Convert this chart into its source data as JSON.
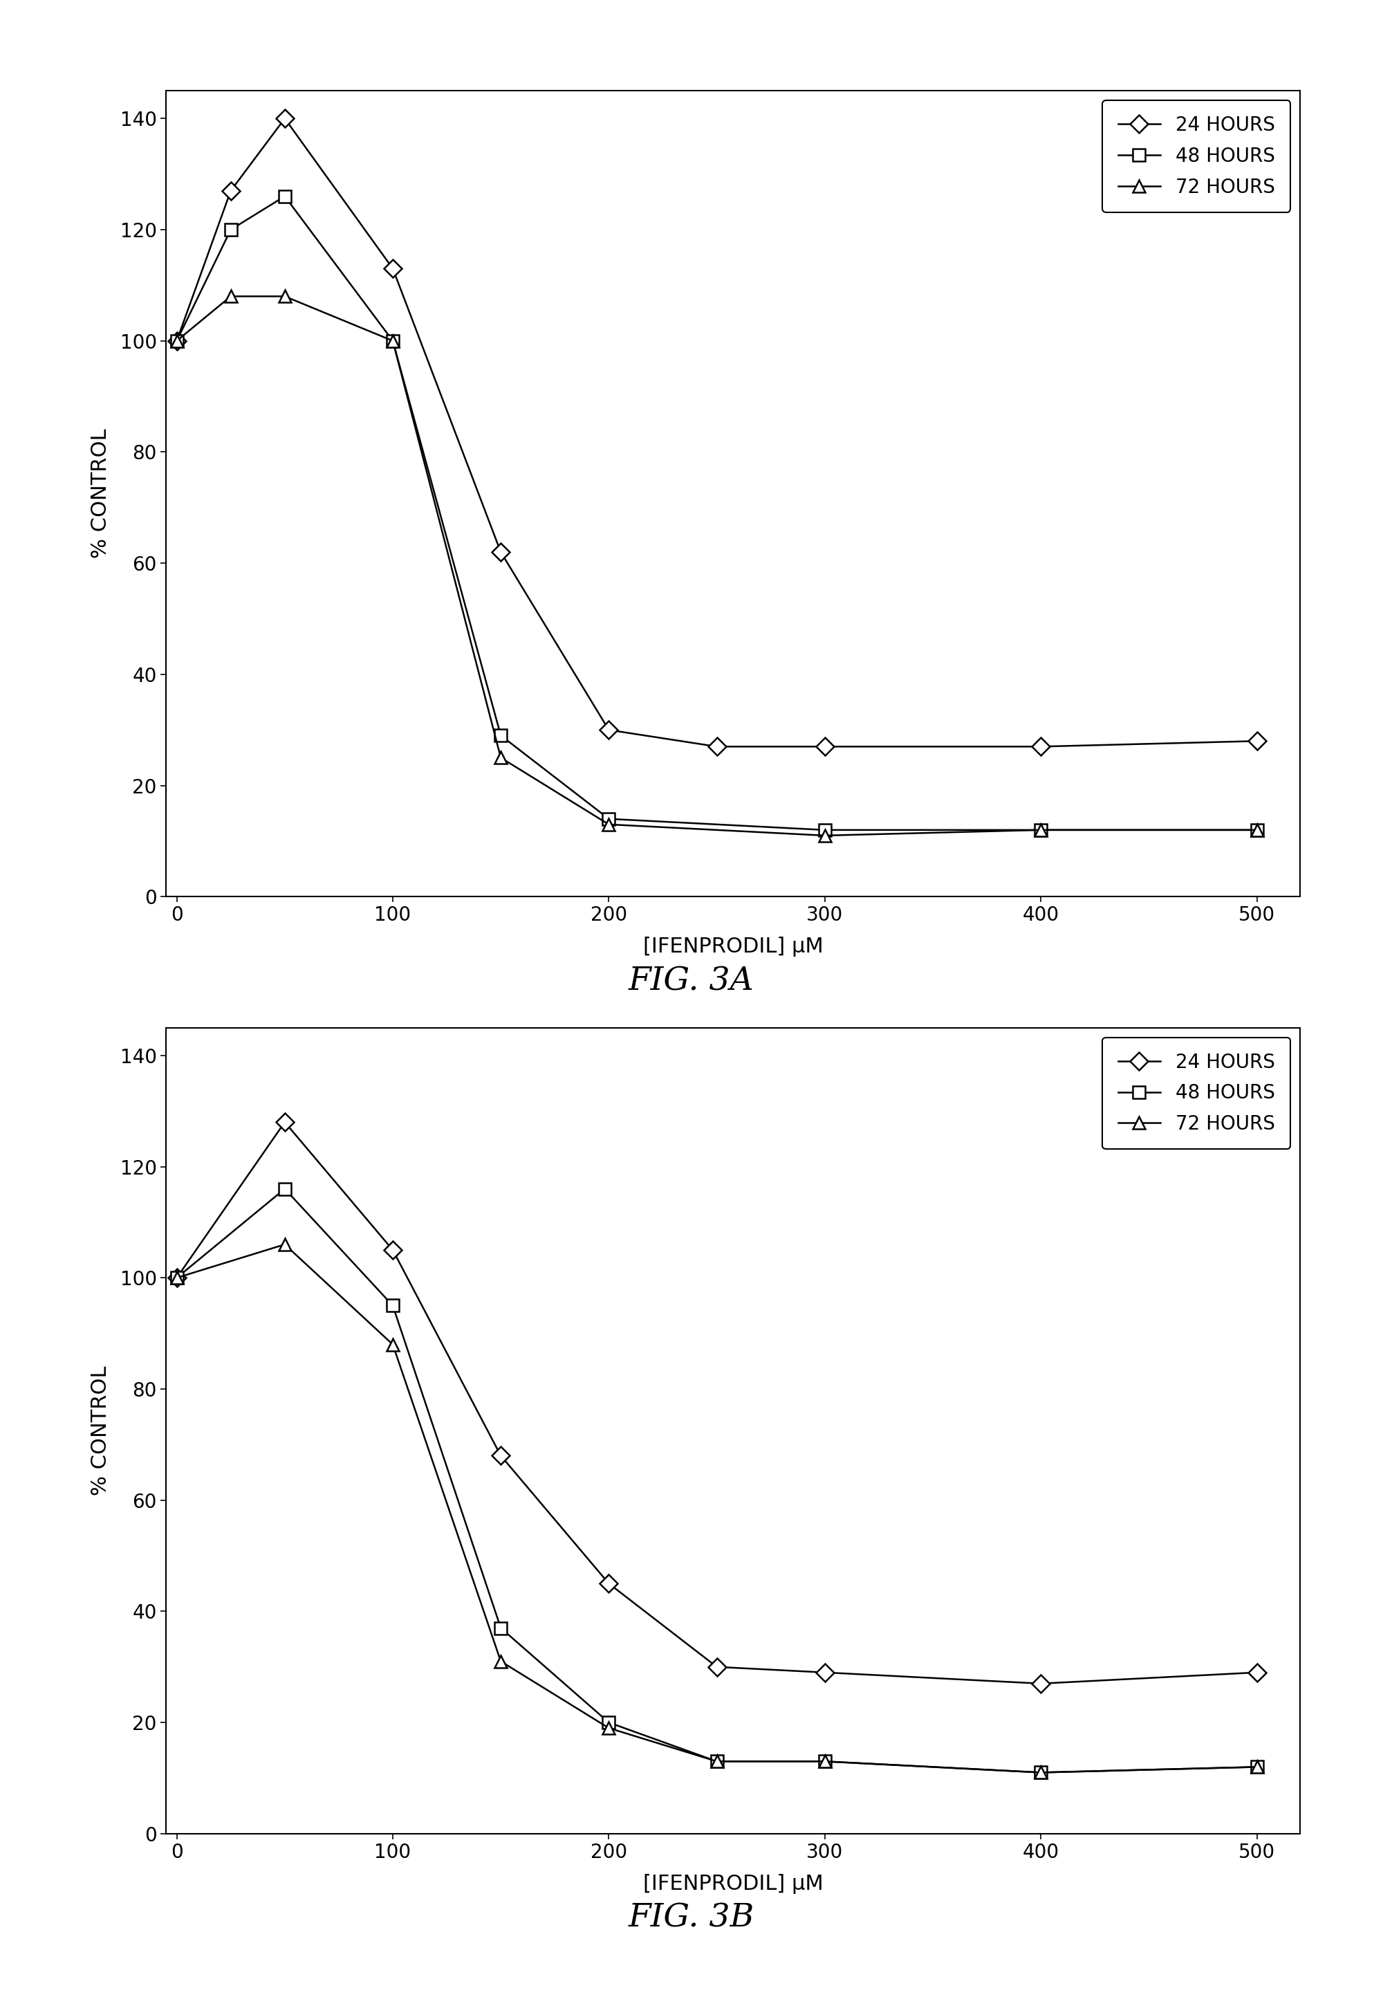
{
  "fig3a": {
    "x_24h": [
      0,
      25,
      50,
      100,
      150,
      200,
      250,
      300,
      400,
      500
    ],
    "y_24h": [
      100,
      127,
      140,
      113,
      62,
      30,
      27,
      27,
      27,
      28
    ],
    "x_48h": [
      0,
      25,
      50,
      100,
      150,
      200,
      300,
      400,
      500
    ],
    "y_48h": [
      100,
      120,
      126,
      100,
      29,
      14,
      12,
      12,
      12
    ],
    "x_72h": [
      0,
      25,
      50,
      100,
      150,
      200,
      300,
      400,
      500
    ],
    "y_72h": [
      100,
      108,
      108,
      100,
      25,
      13,
      11,
      12,
      12
    ],
    "title": "FIG. 3A"
  },
  "fig3b": {
    "x_24h": [
      0,
      50,
      100,
      150,
      200,
      250,
      300,
      400,
      500
    ],
    "y_24h": [
      100,
      128,
      105,
      68,
      45,
      30,
      29,
      27,
      29
    ],
    "x_48h": [
      0,
      50,
      100,
      150,
      200,
      250,
      300,
      400,
      500
    ],
    "y_48h": [
      100,
      116,
      95,
      37,
      20,
      13,
      13,
      11,
      12
    ],
    "x_72h": [
      0,
      50,
      100,
      150,
      200,
      250,
      300,
      400,
      500
    ],
    "y_72h": [
      100,
      106,
      88,
      31,
      19,
      13,
      13,
      11,
      12
    ],
    "title": "FIG. 3B"
  },
  "xlabel": "[IFENPRODIL] μM",
  "ylabel": "% CONTROL",
  "xlim": [
    -5,
    520
  ],
  "ylim": [
    0,
    145
  ],
  "yticks": [
    0,
    20,
    40,
    60,
    80,
    100,
    120,
    140
  ],
  "xticks": [
    0,
    100,
    200,
    300,
    400,
    500
  ],
  "legend_labels": [
    "24 HOURS",
    "48 HOURS",
    "72 HOURS"
  ],
  "line_color": "#000000",
  "bg_color": "#ffffff",
  "marker_24h": "D",
  "marker_48h": "s",
  "marker_72h": "^",
  "marker_size": 13,
  "linewidth": 1.8,
  "fig_title_fontsize": 34,
  "label_fontsize": 22,
  "tick_fontsize": 20,
  "legend_fontsize": 20,
  "fig_width": 20.0,
  "fig_height": 29.13
}
